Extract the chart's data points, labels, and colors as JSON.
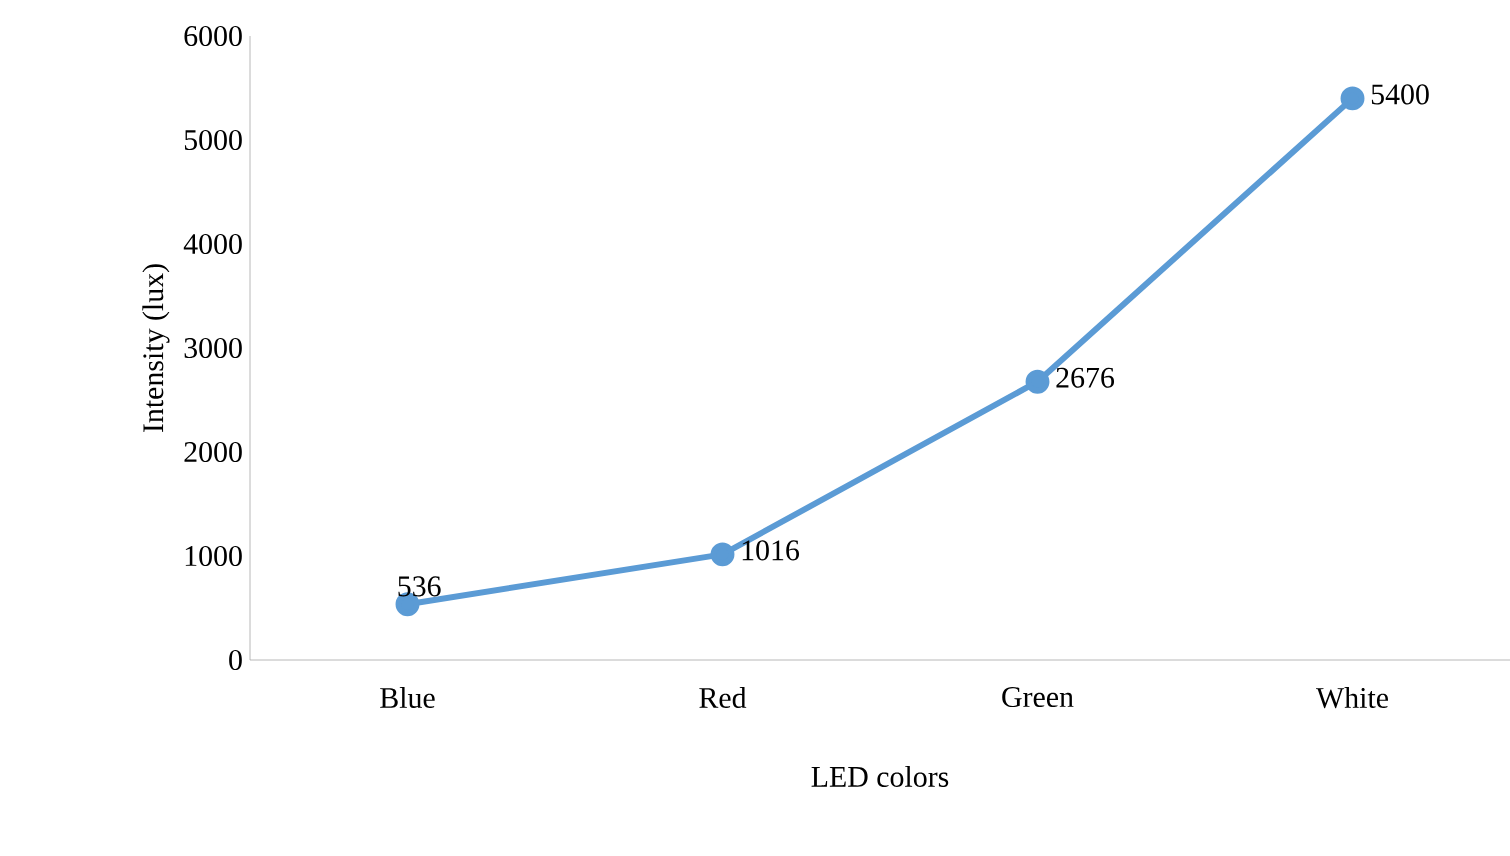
{
  "chart_data": {
    "type": "line",
    "xlabel": "LED colors",
    "ylabel": "Intensity (lux)",
    "categories": [
      "Blue",
      "Red",
      "Green",
      "White"
    ],
    "series": [
      {
        "color": "#5b9bd5",
        "values": [
          536,
          1016,
          2676,
          5400
        ]
      }
    ],
    "ylim": [
      0,
      6000
    ],
    "yticks": [
      0,
      1000,
      2000,
      3000,
      4000,
      5000,
      6000
    ],
    "grid": false,
    "marker": "circle",
    "line_style": "solid",
    "data_labels": true
  }
}
